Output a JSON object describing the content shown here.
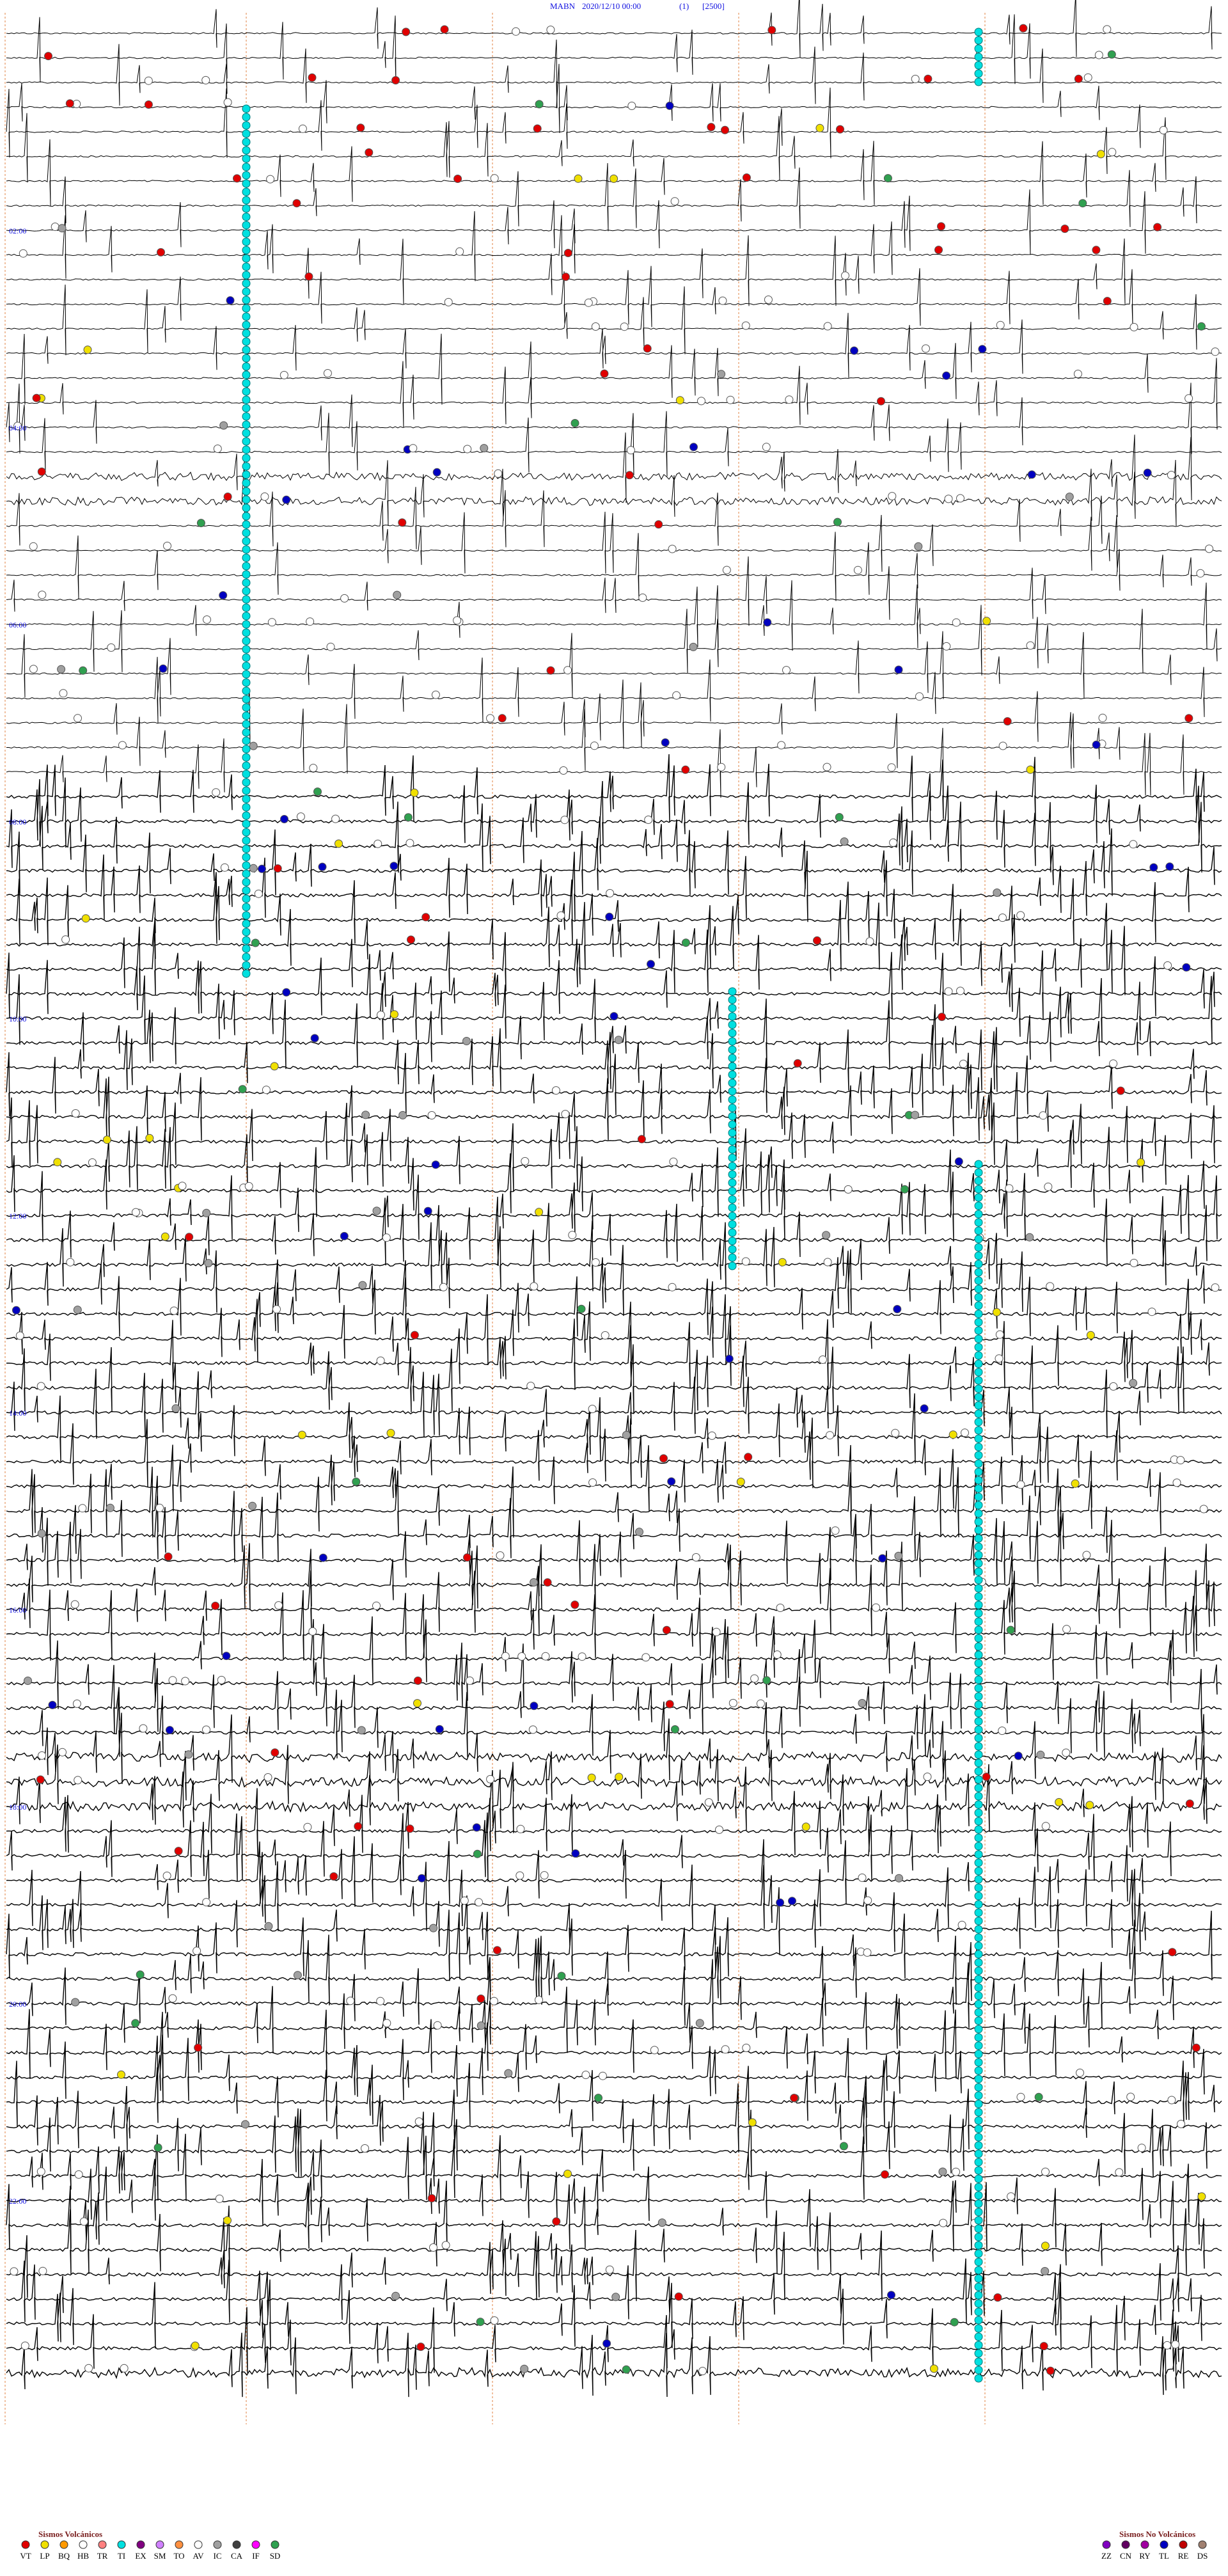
{
  "header": {
    "station": "MABN",
    "datetime": "2020/12/10 00:00",
    "channel": "(1)",
    "scale": "[2500]"
  },
  "time_labels": [
    "02:00",
    "04:00",
    "06:00",
    "08:00",
    "10:00",
    "12:00",
    "14:00",
    "16:00",
    "18:00",
    "20:00",
    "22:00"
  ],
  "legend": {
    "volcanic": {
      "title": "Sismos Volcánicos",
      "items": [
        {
          "code": "VT",
          "color": "#e00000"
        },
        {
          "code": "LP",
          "color": "#f0e000"
        },
        {
          "code": "BQ",
          "color": "#ff9900"
        },
        {
          "code": "HB",
          "color": "#ffffff"
        },
        {
          "code": "TR",
          "color": "#ff8080"
        },
        {
          "code": "TI",
          "color": "#00e0e0"
        },
        {
          "code": "EX",
          "color": "#800080"
        },
        {
          "code": "SM",
          "color": "#d080ff"
        },
        {
          "code": "TO",
          "color": "#ff9040"
        },
        {
          "code": "AV",
          "color": "#ffffff"
        },
        {
          "code": "IC",
          "color": "#a0a0a0"
        },
        {
          "code": "CA",
          "color": "#404040"
        },
        {
          "code": "IF",
          "color": "#ff00ff"
        },
        {
          "code": "SD",
          "color": "#30a050"
        }
      ]
    },
    "non_volcanic": {
      "title": "Sismos No Volcánicos",
      "items": [
        {
          "code": "ZZ",
          "color": "#8000c0"
        },
        {
          "code": "CN",
          "color": "#600060"
        },
        {
          "code": "RY",
          "color": "#a000a0"
        },
        {
          "code": "TL",
          "color": "#0000c0"
        },
        {
          "code": "RE",
          "color": "#c00000"
        },
        {
          "code": "DS",
          "color": "#a08070"
        }
      ]
    }
  }
}
